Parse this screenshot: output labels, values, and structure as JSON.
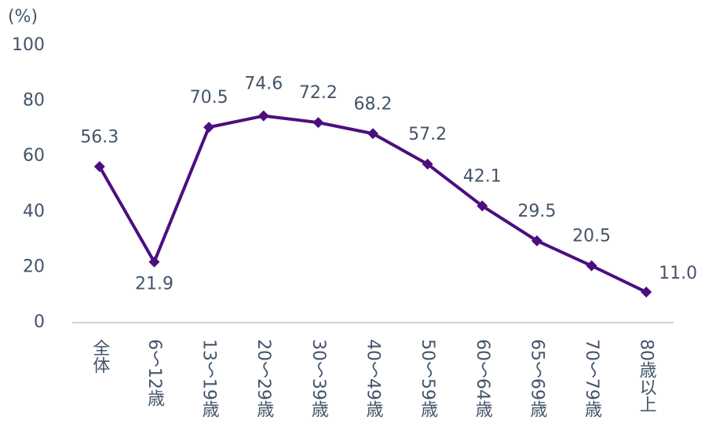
{
  "chart_data": {
    "type": "line",
    "y_label": "(%)",
    "categories": [
      "全体",
      "6～12歳",
      "13～19歳",
      "20～29歳",
      "30～39歳",
      "40～49歳",
      "50～59歳",
      "60～64歳",
      "65～69歳",
      "70～79歳",
      "80歳以上"
    ],
    "values": [
      56.3,
      21.9,
      70.5,
      74.6,
      72.2,
      68.2,
      57.2,
      42.1,
      29.5,
      20.5,
      11.0
    ],
    "value_labels": [
      "56.3",
      "21.9",
      "70.5",
      "74.6",
      "72.2",
      "68.2",
      "57.2",
      "42.1",
      "29.5",
      "20.5",
      "11.0"
    ],
    "color": "#4b0f7e",
    "ylim": [
      0,
      100
    ],
    "yticks": [
      0,
      20,
      40,
      60,
      80,
      100
    ],
    "grid": false
  }
}
